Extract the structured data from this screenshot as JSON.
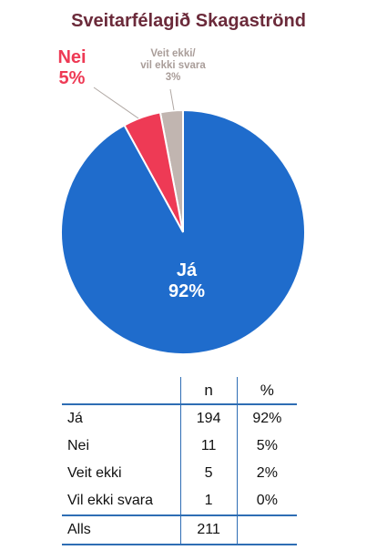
{
  "chart_data": {
    "type": "pie",
    "title": "Sveitarfélagið Skagaströnd",
    "slices": [
      {
        "label": "Já",
        "value": 92,
        "value_label": "92%",
        "color": "#1f6ccc"
      },
      {
        "label": "Nei",
        "value": 5,
        "value_label": "5%",
        "color": "#ee3a55"
      },
      {
        "label": "Veit ekki/ vil ekki svara",
        "label_lines": [
          "Veit ekki/",
          "vil ekki svara"
        ],
        "value": 3,
        "value_label": "3%",
        "color": "#c1b5b0"
      }
    ],
    "start_angle_deg": 0,
    "direction": "counterclockwise"
  },
  "table": {
    "headers": [
      "",
      "n",
      "%"
    ],
    "rows": [
      {
        "label": "Já",
        "n": "194",
        "pct": "92%"
      },
      {
        "label": "Nei",
        "n": "11",
        "pct": "5%"
      },
      {
        "label": "Veit ekki",
        "n": "5",
        "pct": "2%"
      },
      {
        "label": "Vil ekki svara",
        "n": "1",
        "pct": "0%"
      }
    ],
    "total": {
      "label": "Alls",
      "n": "211",
      "pct": ""
    }
  }
}
